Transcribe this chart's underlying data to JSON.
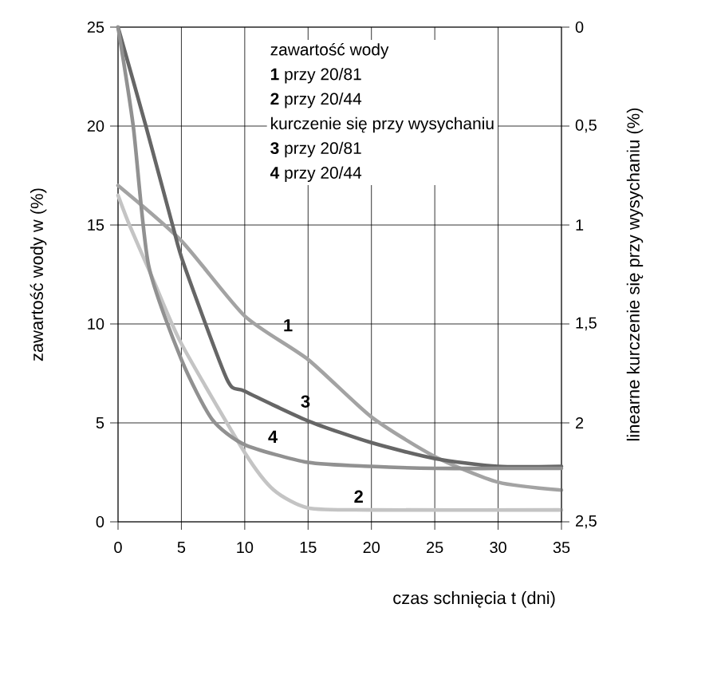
{
  "chart_data": {
    "type": "line",
    "xlabel": "czas schnięcia t (dni)",
    "ylabel": "zawartość wody w (%)",
    "y2label": "linearne kurczenie się przy wysychaniu (%)",
    "xlim": [
      0,
      35
    ],
    "xticks": [
      0,
      5,
      10,
      15,
      20,
      25,
      30,
      35
    ],
    "ylim": [
      0,
      25
    ],
    "yticks": [
      0,
      5,
      10,
      15,
      20,
      25
    ],
    "y2lim": [
      2.5,
      0
    ],
    "y2ticks": [
      0,
      {
        "value": 0.5,
        "label": "0,5"
      },
      1,
      {
        "value": 1.5,
        "label": "1,5"
      },
      2,
      {
        "value": 2.5,
        "label": "2,5"
      }
    ],
    "grid": true,
    "series": [
      {
        "name": "1",
        "color": "#a3a3a3",
        "x": [
          0,
          5,
          10,
          15,
          20,
          25,
          30,
          35
        ],
        "values": [
          17,
          14.2,
          10.4,
          8.2,
          5.3,
          3.3,
          2.0,
          1.6
        ]
      },
      {
        "name": "2",
        "color": "#c4c4c4",
        "x": [
          0,
          0.9,
          2.8,
          5,
          10,
          12.3,
          15,
          20,
          35
        ],
        "values": [
          16.5,
          15,
          12.2,
          9,
          3.5,
          1.6,
          0.7,
          0.6,
          0.6
        ]
      },
      {
        "name": "3",
        "color": "#666666",
        "axis": "y2",
        "x": [
          0,
          2.2,
          4.3,
          5.2,
          8.6,
          10,
          15,
          20,
          25,
          30,
          35
        ],
        "values": [
          0,
          0.5,
          1.0,
          1.2,
          1.78,
          1.84,
          1.99,
          2.1,
          2.18,
          2.22,
          2.22
        ]
      },
      {
        "name": "4",
        "color": "#919191",
        "axis": "y2",
        "x": [
          0,
          1.2,
          2.4,
          5,
          7.4,
          10,
          15,
          20,
          25,
          30,
          35
        ],
        "values": [
          0,
          0.5,
          1.2,
          1.68,
          1.98,
          2.11,
          2.2,
          2.22,
          2.23,
          2.23,
          2.23
        ]
      }
    ],
    "annotations": [
      "zawartość wody",
      "**1** przy 20/81",
      "**2** przy 20/44",
      "kurczenie się przy wysychaniu",
      "**3** przy 20/81",
      "**4** przy 20/44"
    ]
  }
}
